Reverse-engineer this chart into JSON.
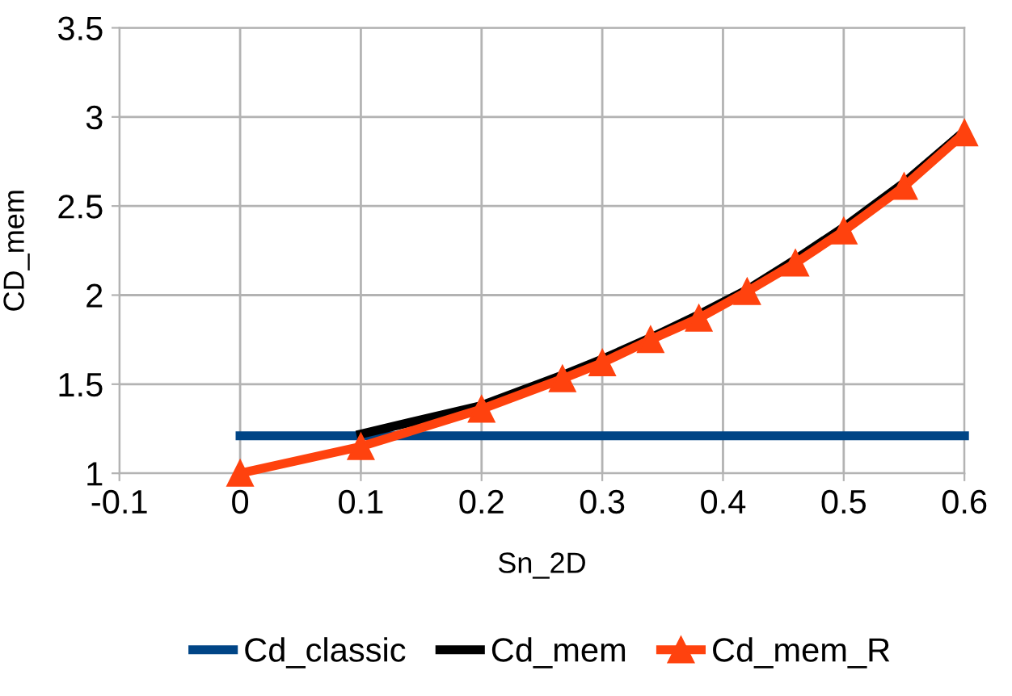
{
  "chart_data": {
    "type": "line",
    "xlabel": "Sn_2D",
    "ylabel": "CD_mem",
    "xlim": [
      -0.1,
      0.6
    ],
    "xticks": [
      -0.1,
      0,
      0.1,
      0.2,
      0.3,
      0.4,
      0.5,
      0.6
    ],
    "ylim": [
      1,
      3.5
    ],
    "yticks": [
      1,
      1.5,
      2,
      2.5,
      3,
      3.5
    ],
    "grid": true,
    "legend": "bottom",
    "series": [
      {
        "name": "Cd_classic",
        "color": "#004586",
        "x": [
          0,
          0.1,
          0.2,
          0.3,
          0.4,
          0.5,
          0.6
        ],
        "values": [
          1.21,
          1.21,
          1.21,
          1.21,
          1.21,
          1.21,
          1.21
        ]
      },
      {
        "name": "Cd_mem",
        "color": "#000000",
        "x": [
          0.1,
          0.2,
          0.267,
          0.3,
          0.34,
          0.38,
          0.42,
          0.46,
          0.5,
          0.55,
          0.6
        ],
        "values": [
          1.22,
          1.38,
          1.55,
          1.64,
          1.76,
          1.89,
          2.03,
          2.2,
          2.38,
          2.63,
          2.92
        ]
      },
      {
        "name": "Cd_mem_R",
        "color": "#ff420e",
        "marker": "triangle",
        "x": [
          0,
          0.1,
          0.2,
          0.267,
          0.3,
          0.34,
          0.38,
          0.42,
          0.46,
          0.5,
          0.55,
          0.6
        ],
        "values": [
          1.0,
          1.15,
          1.36,
          1.53,
          1.62,
          1.75,
          1.87,
          2.02,
          2.18,
          2.36,
          2.61,
          2.91
        ]
      }
    ]
  }
}
